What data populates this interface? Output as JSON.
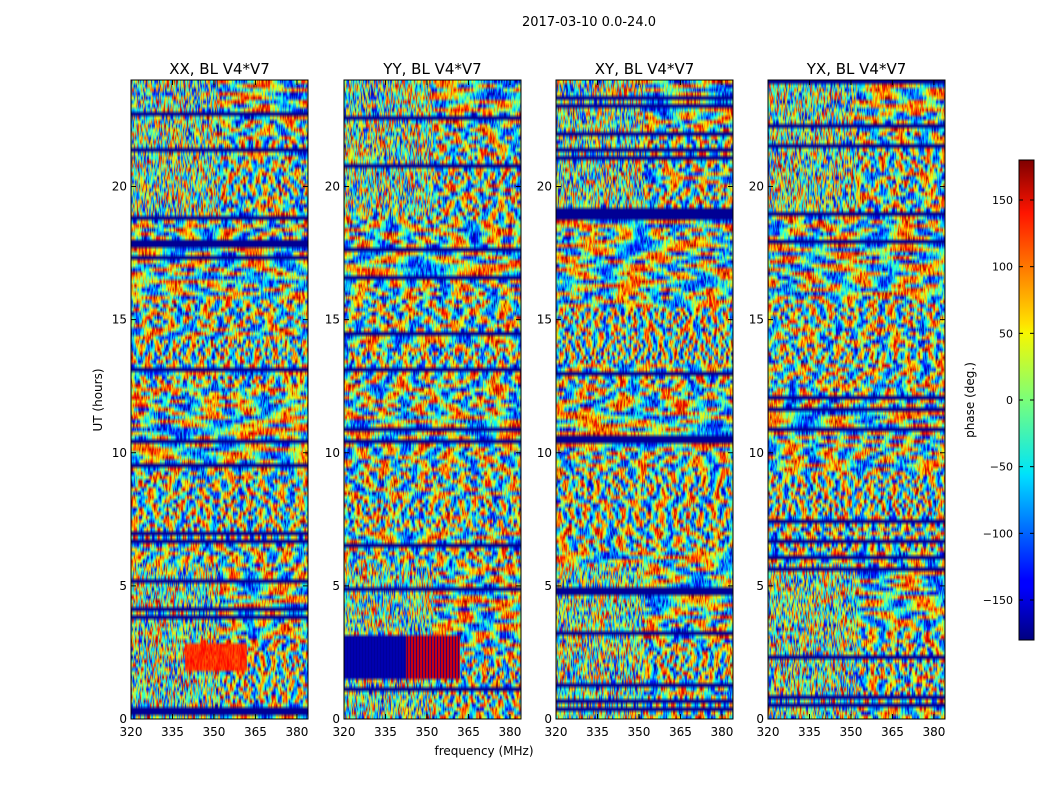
{
  "figure": {
    "suptitle": "2017-03-10 0.0-24.0",
    "xlabel": "frequency (MHz)",
    "ylabel": "UT (hours)"
  },
  "colorbar": {
    "label": "phase (deg.)",
    "colormap": "jet",
    "range": [
      -180,
      180
    ],
    "ticks": [
      150,
      100,
      50,
      0,
      -50,
      -100,
      -150
    ],
    "tick_labels": [
      "150",
      "100",
      "50",
      "0",
      "−50",
      "−100",
      "−150"
    ]
  },
  "chart_data": [
    {
      "type": "heatmap",
      "title": "XX, BL V4*V7",
      "x_ticks": [
        320,
        335,
        350,
        365,
        380
      ],
      "y_ticks": [
        0,
        5,
        10,
        15,
        20
      ],
      "xlim": [
        320,
        384
      ],
      "ylim": [
        0,
        24
      ],
      "value": "phase (deg.)",
      "vmin": -180,
      "vmax": 180
    },
    {
      "type": "heatmap",
      "title": "YY, BL V4*V7",
      "x_ticks": [
        320,
        335,
        350,
        365,
        380
      ],
      "y_ticks": [
        0,
        5,
        10,
        15,
        20
      ],
      "xlim": [
        320,
        384
      ],
      "ylim": [
        0,
        24
      ],
      "value": "phase (deg.)",
      "vmin": -180,
      "vmax": 180
    },
    {
      "type": "heatmap",
      "title": "XY, BL V4*V7",
      "x_ticks": [
        320,
        335,
        350,
        365,
        380
      ],
      "y_ticks": [
        0,
        5,
        10,
        15,
        20
      ],
      "xlim": [
        320,
        384
      ],
      "ylim": [
        0,
        24
      ],
      "value": "phase (deg.)",
      "vmin": -180,
      "vmax": 180
    },
    {
      "type": "heatmap",
      "title": "YX, BL V4*V7",
      "x_ticks": [
        320,
        335,
        350,
        365,
        380
      ],
      "y_ticks": [
        0,
        5,
        10,
        15,
        20
      ],
      "xlim": [
        320,
        384
      ],
      "ylim": [
        0,
        24
      ],
      "value": "phase (deg.)",
      "vmin": -180,
      "vmax": 180
    }
  ]
}
